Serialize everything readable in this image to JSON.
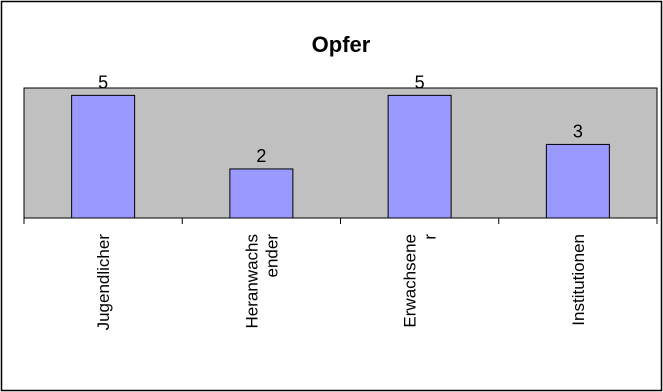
{
  "chart_data": {
    "type": "bar",
    "title": "Opfer",
    "categories": [
      "Jugendlicher",
      "Heranwachs ender",
      "Erwachsene r",
      "Institutionen"
    ],
    "category_lines": [
      [
        "Jugendlicher"
      ],
      [
        "Heranwachs",
        "ender"
      ],
      [
        "Erwachsene",
        "r"
      ],
      [
        "Institutionen"
      ]
    ],
    "values": [
      5,
      2,
      5,
      3
    ],
    "data_labels": [
      "5",
      "2",
      "5",
      "3"
    ],
    "ylim": [
      0,
      5
    ],
    "xlabel": "",
    "ylabel": "",
    "grid": false,
    "legend": "none",
    "colors": {
      "bar_fill": "#9999ff",
      "bar_stroke": "#000000",
      "plot_area": "#c0c0c0",
      "background": "#ffffff",
      "border": "#000000"
    }
  }
}
